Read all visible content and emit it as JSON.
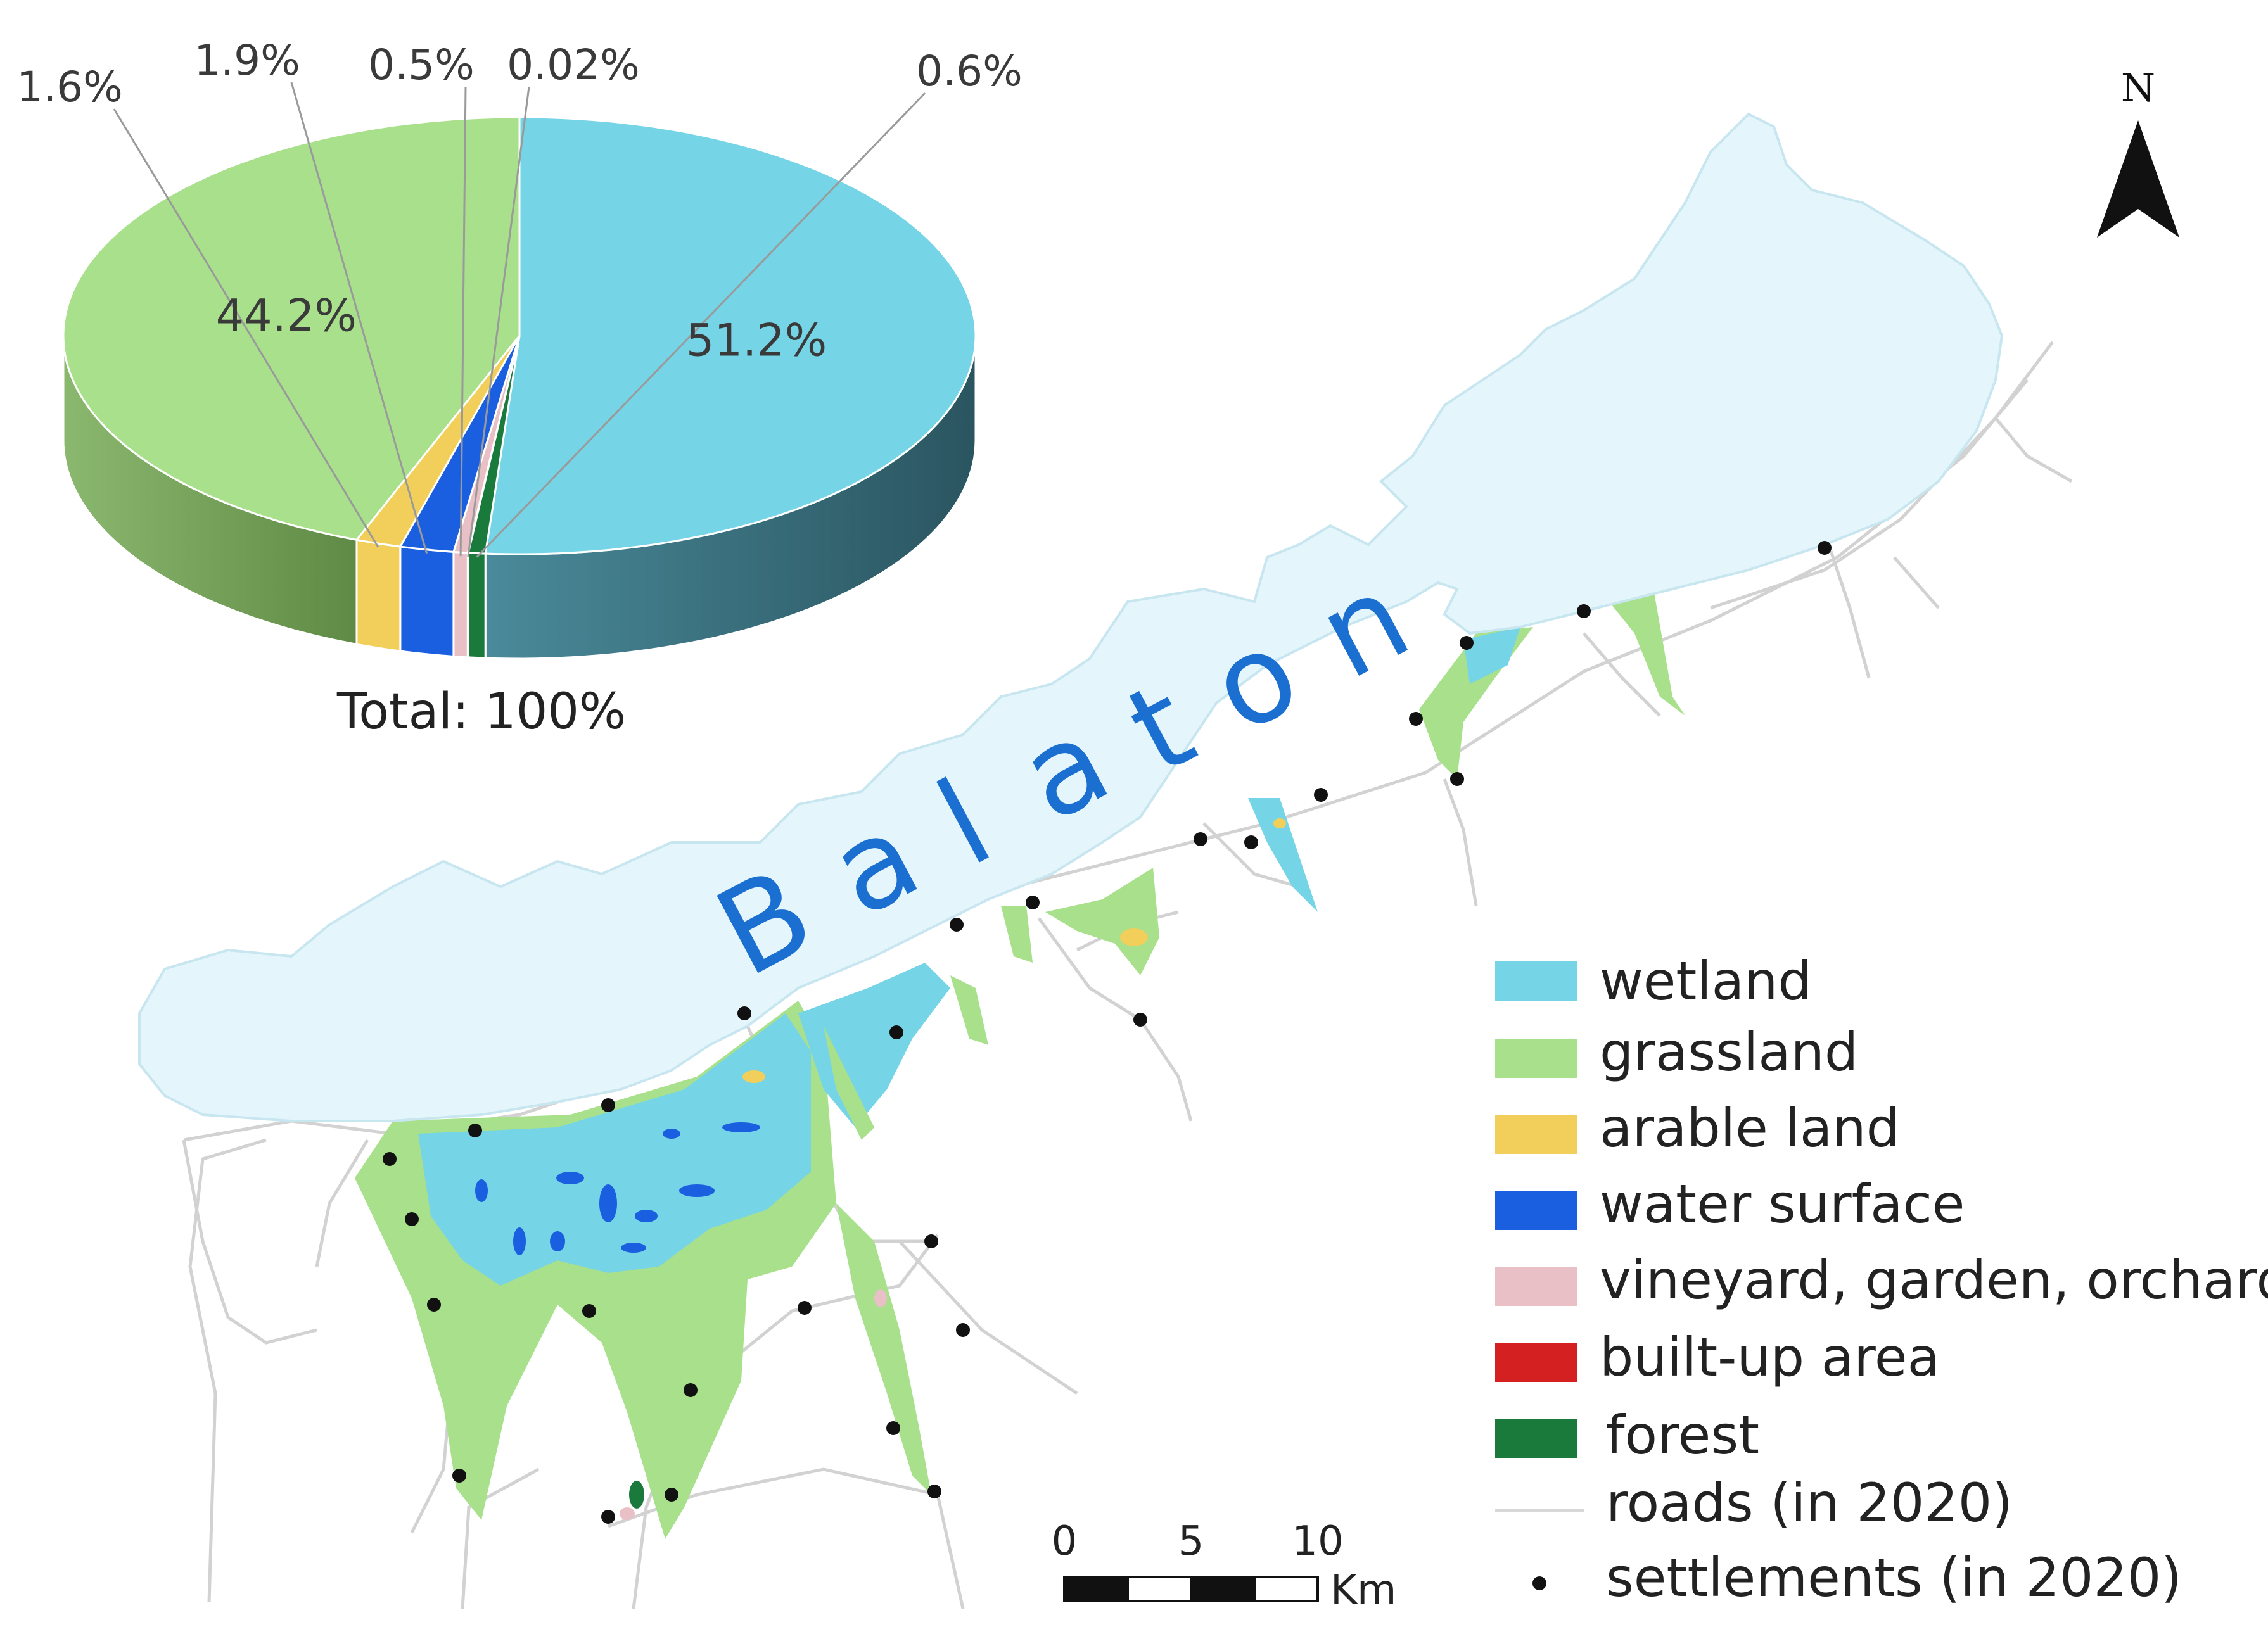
{
  "lake_label_letters": [
    "B",
    "a",
    "l",
    "a",
    "t",
    "o",
    "n"
  ],
  "chart_data": {
    "type": "pie",
    "title": "",
    "total_label": "Total: 100%",
    "slices": [
      {
        "category": "wetland",
        "value": 51.2,
        "label": "51.2%",
        "color": "#75d4e6"
      },
      {
        "category": "forest",
        "value": 0.6,
        "label": "0.6%",
        "color": "#1a7a3c"
      },
      {
        "category": "built-up area",
        "value": 0.02,
        "label": "0.02%",
        "color": "#d42020"
      },
      {
        "category": "vineyard, garden, orchard",
        "value": 0.5,
        "label": "0.5%",
        "color": "#e8c0c6"
      },
      {
        "category": "water surface",
        "value": 1.9,
        "label": "1.9%",
        "color": "#1a5fe0"
      },
      {
        "category": "arable land",
        "value": 1.6,
        "label": "1.6%",
        "color": "#f1cf5a"
      },
      {
        "category": "grassland",
        "value": 44.2,
        "label": "44.2%",
        "color": "#a8e08c"
      }
    ]
  },
  "north_arrow": {
    "label": "N"
  },
  "scale_bar": {
    "ticks": [
      "0",
      "5",
      "10"
    ],
    "unit": "Km"
  },
  "legend": {
    "items": [
      {
        "label": "wetland",
        "kind": "swatch",
        "color": "#75d4e6"
      },
      {
        "label": "grassland",
        "kind": "swatch",
        "color": "#a8e08c"
      },
      {
        "label": "arable land",
        "kind": "swatch",
        "color": "#f1cf5a"
      },
      {
        "label": "water surface",
        "kind": "swatch",
        "color": "#1a5fe0"
      },
      {
        "label": "vineyard, garden, orchard",
        "kind": "swatch",
        "color": "#e8c0c6"
      },
      {
        "label": "built-up area",
        "kind": "swatch",
        "color": "#d42020"
      },
      {
        "label": "forest",
        "kind": "swatch",
        "color": "#1a7a3c"
      },
      {
        "label": "roads (in 2020)",
        "kind": "line",
        "color": "#d8d8d8"
      },
      {
        "label": "settlements (in 2020)",
        "kind": "dot",
        "color": "#111111"
      }
    ]
  },
  "colors": {
    "lake_fill": "#e4f6fb",
    "lake_outline": "#c8e6f0",
    "road": "#d2d2d2",
    "settlement": "#111111",
    "lake_label": "#1a6fd1"
  }
}
